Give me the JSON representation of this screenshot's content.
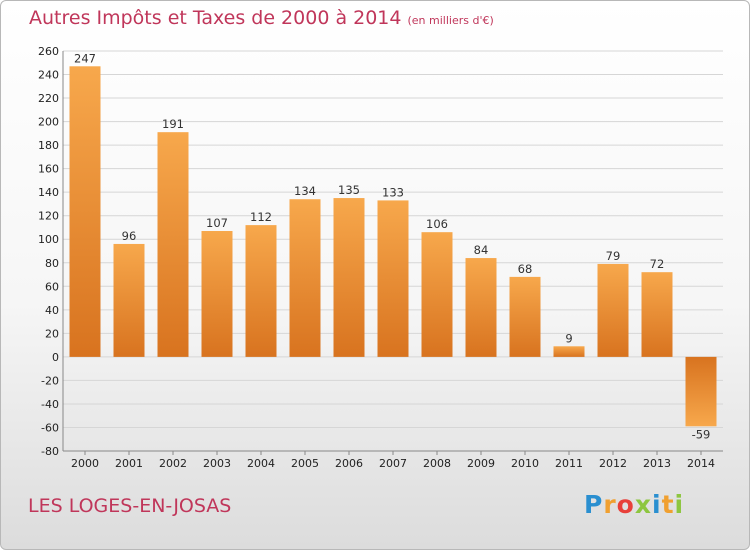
{
  "chart_data": {
    "type": "bar",
    "title": "Autres Impôts et Taxes de 2000 à 2014",
    "unit": "(en milliers d'€)",
    "categories": [
      "2000",
      "2001",
      "2002",
      "2003",
      "2004",
      "2005",
      "2006",
      "2007",
      "2008",
      "2009",
      "2010",
      "2011",
      "2012",
      "2013",
      "2014"
    ],
    "values": [
      247,
      96,
      191,
      107,
      112,
      134,
      135,
      133,
      106,
      84,
      68,
      9,
      79,
      72,
      -59
    ],
    "value_labels": [
      "247",
      "96",
      "191",
      "107",
      "112",
      "134",
      "135",
      "133",
      "106",
      "84",
      "68",
      "9",
      "79",
      "72",
      "-59"
    ],
    "ylim": [
      -80,
      260
    ],
    "yticks": [
      -80,
      -60,
      -40,
      -20,
      0,
      20,
      40,
      60,
      80,
      100,
      120,
      140,
      160,
      180,
      200,
      220,
      240,
      260
    ],
    "ytick_labels": [
      "-80",
      "-60",
      "-40",
      "-20",
      "0",
      "20",
      "40",
      "60",
      "80",
      "100",
      "120",
      "140",
      "160",
      "180",
      "200",
      "220",
      "240",
      "260"
    ],
    "grid": "horizontal",
    "bar_color_light": "#f7a84c",
    "bar_color_dark": "#d8731f"
  },
  "footer": {
    "commune": "LES LOGES-EN-JOSAS",
    "logo_letters": [
      "P",
      "r",
      "o",
      "x",
      "i",
      "t",
      "i"
    ]
  },
  "colors": {
    "title": "#c0365a",
    "grid": "#d6d6d6"
  }
}
